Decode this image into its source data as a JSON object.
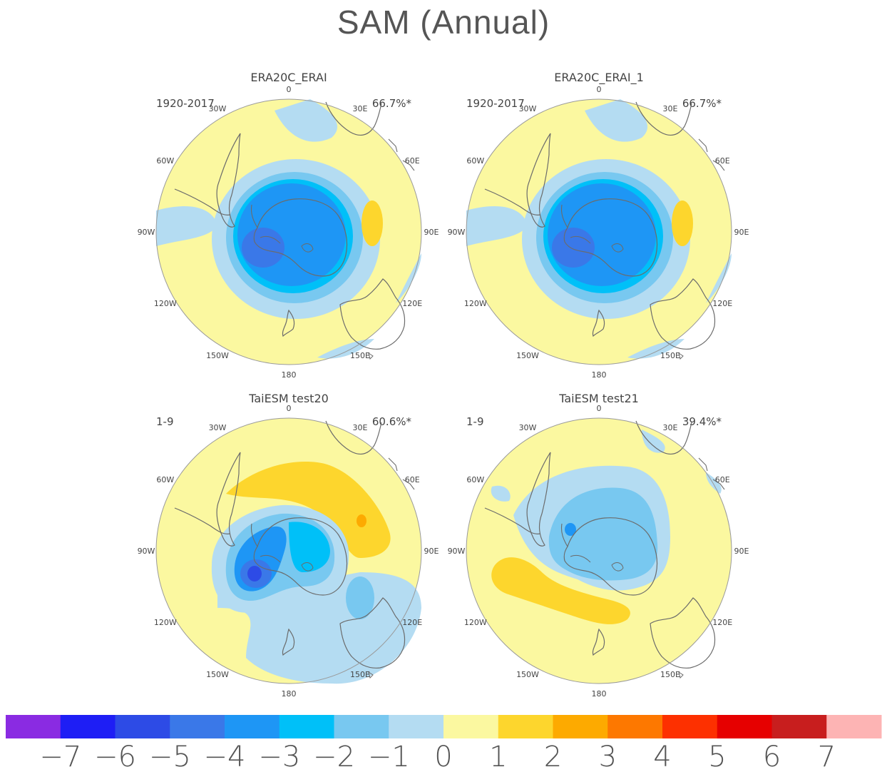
{
  "title": "SAM (Annual)",
  "panels": [
    {
      "name": "ERA20C_ERAI",
      "period": "1920-2017",
      "variance": "66.7%*"
    },
    {
      "name": "ERA20C_ERAI_1",
      "period": "1920-2017",
      "variance": "66.7%*"
    },
    {
      "name": "TaiESM test20",
      "period": "1-9",
      "variance": "60.6%*"
    },
    {
      "name": "TaiESM test21",
      "period": "1-9",
      "variance": "39.4%*"
    }
  ],
  "longitude_labels": [
    "0",
    "30E",
    "60E",
    "90E",
    "120E",
    "150E",
    "180",
    "150W",
    "120W",
    "90W",
    "60W",
    "30W"
  ],
  "colorbar": {
    "colors": [
      "#8a2be2",
      "#1e1ef5",
      "#2d4be6",
      "#3a78e8",
      "#1e96f5",
      "#00c0f8",
      "#78c8f0",
      "#b4dcf2",
      "#fbf8a0",
      "#fdd62d",
      "#fdaa00",
      "#fd7800",
      "#fd3000",
      "#e60000",
      "#c81e1e",
      "#fdb4b4"
    ],
    "tick_labels": [
      "−7",
      "−6",
      "−5",
      "−4",
      "−3",
      "−2",
      "−1",
      "0",
      "1",
      "2",
      "3",
      "4",
      "5",
      "6",
      "7"
    ]
  },
  "chart_data": {
    "type": "polar stereographic contour map",
    "hemisphere": "south",
    "variable": "SAM (Annual)",
    "contour_levels": [
      -7,
      -6,
      -5,
      -4,
      -3,
      -2,
      -1,
      0,
      1,
      2,
      3,
      4,
      5,
      6,
      7
    ],
    "panels": [
      {
        "name": "ERA20C_ERAI",
        "period": "1920-2017",
        "explained_variance_percent": 66.7,
        "significant": true
      },
      {
        "name": "ERA20C_ERAI_1",
        "period": "1920-2017",
        "explained_variance_percent": 66.7,
        "significant": true
      },
      {
        "name": "TaiESM test20",
        "period": "1-9",
        "explained_variance_percent": 60.6,
        "significant": true
      },
      {
        "name": "TaiESM test21",
        "period": "1-9",
        "explained_variance_percent": 39.4,
        "significant": true
      }
    ]
  }
}
